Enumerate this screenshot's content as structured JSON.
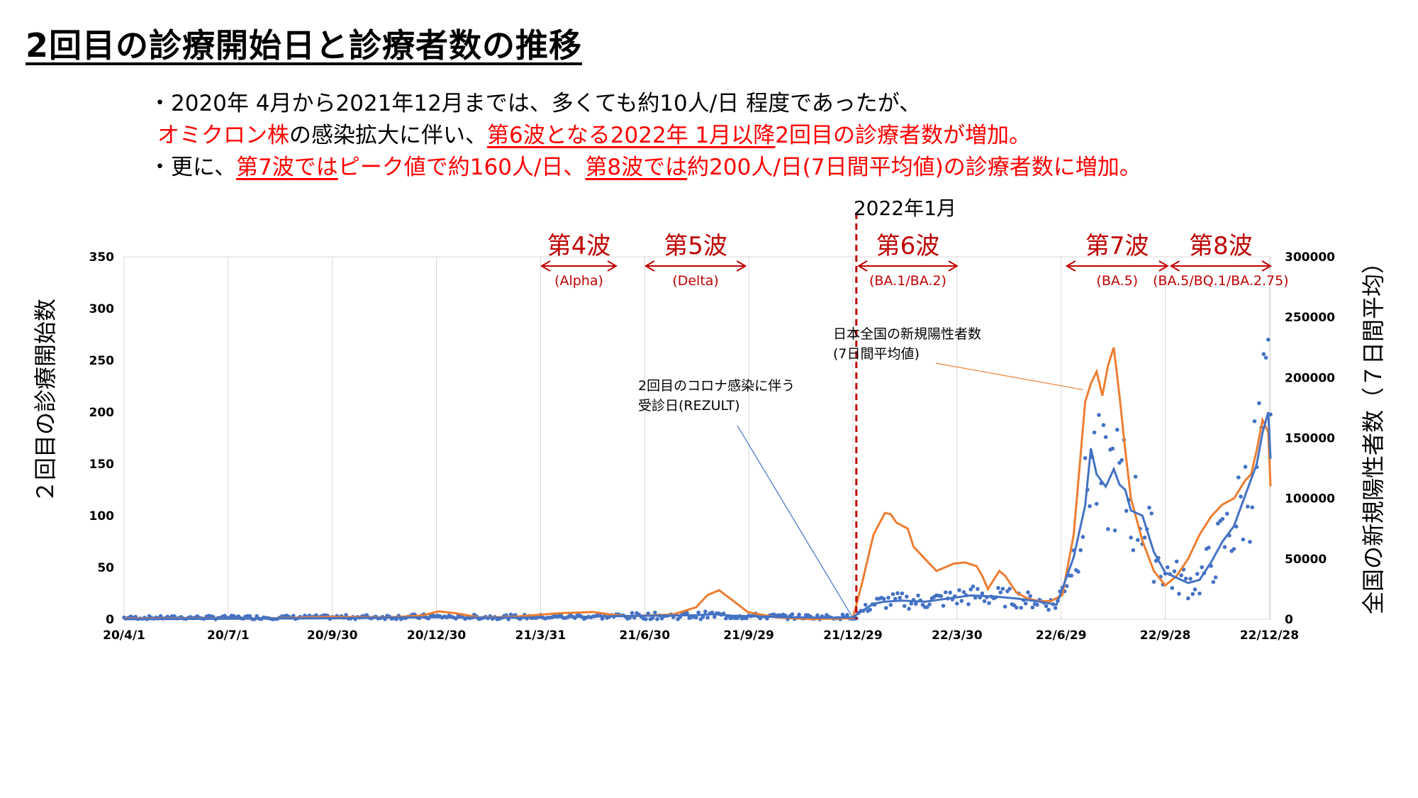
{
  "title": "2回目の診療開始日と診療者数の推移",
  "bullets": {
    "line1": "・2020年 4月から2021年12月までは、多くても約10人/日 程度であったが、",
    "line2_a": "オミクロン株",
    "line2_b": "の感染拡大に伴い、",
    "line2_c": "第6波となる2022年 1月以降",
    "line2_d": "2回目の診療者数が増加。",
    "line3_a": "・更に、",
    "line3_b": "第7波では",
    "line3_c": "ピーク値で約160人/日、",
    "line3_d": "第8波では",
    "line3_e": "約200人/日(7日間平均値)の診療者数に増加。"
  },
  "colors": {
    "dots": "#4472c4",
    "avg_line": "#4472c4",
    "national_line": "#ed7d31",
    "wave": "#c00000",
    "grid": "#d9d9d9"
  },
  "chart_data": {
    "type": "line",
    "x_ticks": [
      "20/4/1",
      "20/7/1",
      "20/9/30",
      "20/12/30",
      "21/3/31",
      "21/6/30",
      "21/9/29",
      "21/12/29",
      "22/3/30",
      "22/6/29",
      "22/9/28",
      "22/12/28"
    ],
    "x_tick_days": [
      0,
      91,
      182,
      273,
      364,
      455,
      546,
      637,
      728,
      819,
      910,
      1001
    ],
    "x_range_days": [
      0,
      1002
    ],
    "y_left": {
      "label": "２回目の診療開始数",
      "ticks": [
        0,
        50,
        100,
        150,
        200,
        250,
        300,
        350
      ],
      "range": [
        0,
        350
      ]
    },
    "y_right": {
      "label": "全国の新規陽性者数（７日間平均）",
      "ticks": [
        0,
        50000,
        100000,
        150000,
        200000,
        250000,
        300000
      ],
      "range": [
        0,
        300000
      ]
    },
    "x_unit": "days",
    "marker": {
      "label": "2022年1月",
      "x": 640
    },
    "waves": [
      {
        "name": "第4波",
        "variant": "(Alpha)",
        "x_start": 365,
        "x_end": 430
      },
      {
        "name": "第5波",
        "variant": "(Delta)",
        "x_start": 456,
        "x_end": 543
      },
      {
        "name": "第6波",
        "variant": "(BA.1/BA.2)",
        "x_start": 642,
        "x_end": 728
      },
      {
        "name": "第7波",
        "variant": "(BA.5)",
        "x_start": 824,
        "x_end": 912
      },
      {
        "name": "第8波",
        "variant": "(BA.5/BQ.1/BA.2.75)",
        "x_start": 915,
        "x_end": 1002
      }
    ],
    "annotations": [
      {
        "lines": [
          "2回目のコロナ感染に伴う",
          "受診日(REZULT)"
        ],
        "target_series": "avg"
      },
      {
        "lines": [
          "日本全国の新規陽性者数",
          "(7日間平均値)"
        ],
        "target_series": "national"
      }
    ],
    "series": [
      {
        "key": "national",
        "axis": "right",
        "x": [
          0,
          60,
          120,
          180,
          230,
          260,
          275,
          290,
          310,
          340,
          380,
          410,
          425,
          440,
          480,
          500,
          510,
          520,
          530,
          545,
          570,
          600,
          637,
          645,
          655,
          665,
          670,
          675,
          685,
          690,
          700,
          710,
          720,
          725,
          735,
          745,
          750,
          755,
          765,
          770,
          780,
          790,
          800,
          810,
          820,
          830,
          840,
          845,
          850,
          855,
          860,
          865,
          870,
          875,
          880,
          890,
          900,
          910,
          920,
          930,
          940,
          950,
          960,
          970,
          980,
          985,
          990,
          995,
          1000,
          1002
        ],
        "y": [
          500,
          600,
          500,
          2000,
          1500,
          3000,
          6500,
          5000,
          1500,
          2000,
          5000,
          6000,
          4000,
          2500,
          4000,
          10000,
          20000,
          24000,
          17000,
          6000,
          1500,
          200,
          800,
          30000,
          70000,
          88000,
          87000,
          80000,
          75000,
          60000,
          50000,
          40000,
          44000,
          46000,
          47000,
          44000,
          36000,
          25000,
          40000,
          36000,
          22000,
          17000,
          15000,
          15000,
          20000,
          70000,
          180000,
          195000,
          205000,
          185000,
          210000,
          225000,
          185000,
          140000,
          100000,
          65000,
          40000,
          28000,
          36000,
          50000,
          70000,
          85000,
          95000,
          100000,
          115000,
          120000,
          140000,
          165000,
          155000,
          110000
        ]
      },
      {
        "key": "avg",
        "axis": "left",
        "x": [
          0,
          90,
          180,
          270,
          300,
          365,
          430,
          500,
          515,
          530,
          545,
          580,
          620,
          637,
          645,
          655,
          665,
          680,
          700,
          720,
          740,
          760,
          780,
          800,
          815,
          830,
          840,
          845,
          850,
          858,
          865,
          870,
          875,
          880,
          890,
          900,
          910,
          920,
          930,
          940,
          950,
          960,
          970,
          980,
          990,
          995,
          1000,
          1002
        ],
        "y": [
          0,
          0.5,
          1,
          2,
          1.5,
          1.5,
          3,
          4,
          5,
          3.5,
          3,
          2,
          1.5,
          2,
          8,
          15,
          17,
          18,
          17,
          20,
          23,
          22,
          20,
          17,
          14,
          60,
          110,
          165,
          140,
          128,
          145,
          130,
          125,
          105,
          100,
          65,
          45,
          40,
          35,
          38,
          55,
          75,
          90,
          120,
          150,
          180,
          200,
          155
        ]
      }
    ]
  }
}
